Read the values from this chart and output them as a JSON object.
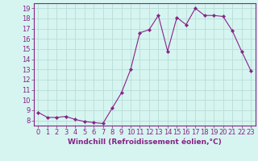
{
  "x": [
    0,
    1,
    2,
    3,
    4,
    5,
    6,
    7,
    8,
    9,
    10,
    11,
    12,
    13,
    14,
    15,
    16,
    17,
    18,
    19,
    20,
    21,
    22,
    23
  ],
  "y": [
    8.8,
    8.3,
    8.3,
    8.4,
    8.1,
    7.9,
    7.8,
    7.7,
    9.2,
    10.7,
    13.0,
    16.6,
    16.9,
    18.3,
    14.8,
    18.1,
    17.4,
    19.0,
    18.3,
    18.3,
    18.2,
    16.8,
    14.8,
    12.9
  ],
  "line_color": "#882288",
  "marker": "D",
  "marker_size": 2.2,
  "bg_color": "#d6f5f0",
  "grid_color": "#b8ddd8",
  "xlabel": "Windchill (Refroidissement éolien,°C)",
  "xlabel_fontsize": 6.5,
  "tick_fontsize": 6.0,
  "ylim": [
    7.5,
    19.5
  ],
  "yticks": [
    8,
    9,
    10,
    11,
    12,
    13,
    14,
    15,
    16,
    17,
    18,
    19
  ],
  "xticks": [
    0,
    1,
    2,
    3,
    4,
    5,
    6,
    7,
    8,
    9,
    10,
    11,
    12,
    13,
    14,
    15,
    16,
    17,
    18,
    19,
    20,
    21,
    22,
    23
  ],
  "xlim": [
    -0.5,
    23.5
  ]
}
